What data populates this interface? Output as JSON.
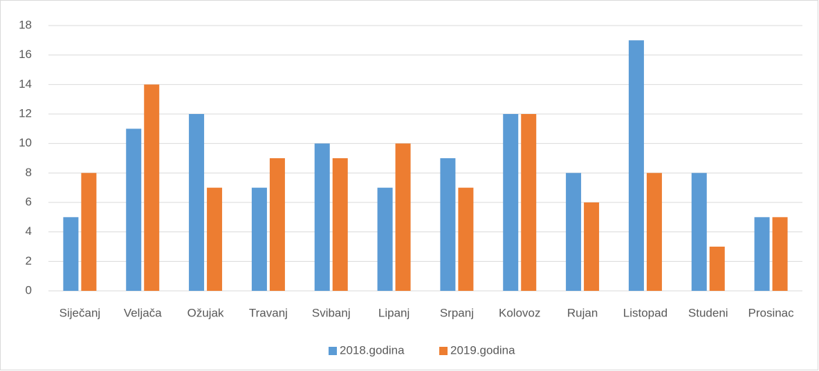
{
  "chart_data": {
    "type": "bar",
    "categories": [
      "Siječanj",
      "Veljača",
      "Ožujak",
      "Travanj",
      "Svibanj",
      "Lipanj",
      "Srpanj",
      "Kolovoz",
      "Rujan",
      "Listopad",
      "Studeni",
      "Prosinac"
    ],
    "series": [
      {
        "name": "2018.godina",
        "color": "#5b9bd5",
        "values": [
          5,
          11,
          12,
          7,
          10,
          7,
          9,
          12,
          8,
          17,
          8,
          5
        ]
      },
      {
        "name": "2019.godina",
        "color": "#ed7d31",
        "values": [
          8,
          14,
          7,
          9,
          9,
          10,
          7,
          12,
          6,
          8,
          3,
          5
        ]
      }
    ],
    "ylim": [
      0,
      18
    ],
    "yticks": [
      0,
      2,
      4,
      6,
      8,
      10,
      12,
      14,
      16,
      18
    ],
    "grid": true,
    "legend": "bottom"
  }
}
